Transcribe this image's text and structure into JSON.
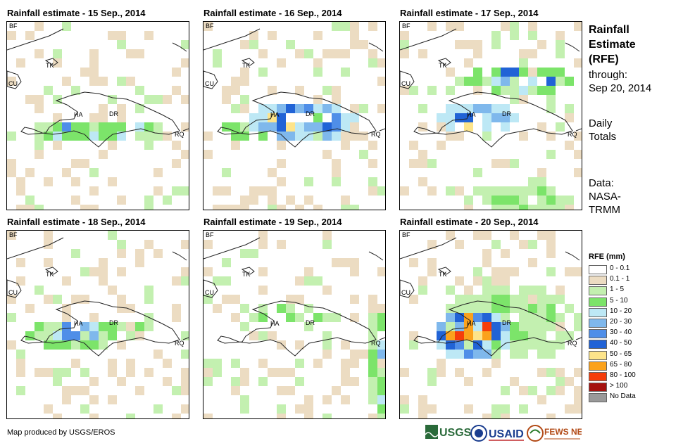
{
  "panels": [
    {
      "title": "Rainfall estimate - 15 Sep., 2014"
    },
    {
      "title": "Rainfall estimate - 16 Sep., 2014"
    },
    {
      "title": "Rainfall estimate - 17 Sep., 2014"
    },
    {
      "title": "Rainfall estimate - 18 Sep., 2014"
    },
    {
      "title": "Rainfall estimate - 19 Sep., 2014"
    },
    {
      "title": "Rainfall estimate - 20 Sep., 2014"
    }
  ],
  "places": {
    "bf": "BF",
    "cu": "CU",
    "tk": "TK",
    "ha": "HA",
    "dr": "DR",
    "rq": "RQ"
  },
  "side": {
    "title_line1": "Rainfall",
    "title_line2": "Estimate",
    "title_line3": "(RFE)",
    "through_line1": "through:",
    "through_line2": "Sep 20, 2014",
    "daily_line1": "Daily",
    "daily_line2": "Totals",
    "data_line1": "Data:",
    "data_line2": "NASA-",
    "data_line3": "TRMM"
  },
  "legend": {
    "title": "RFE (mm)",
    "items": [
      {
        "label": "0 - 0.1",
        "color": "#ffffff"
      },
      {
        "label": "0.1 - 1",
        "color": "#ecdcc2"
      },
      {
        "label": "1 - 5",
        "color": "#c3f0b0"
      },
      {
        "label": "5 - 10",
        "color": "#7ce46a"
      },
      {
        "label": "10 - 20",
        "color": "#bde8f5"
      },
      {
        "label": "20 - 30",
        "color": "#7fb8ec"
      },
      {
        "label": "30 - 40",
        "color": "#4f8ee8"
      },
      {
        "label": "40 - 50",
        "color": "#2163d6"
      },
      {
        "label": "50 - 65",
        "color": "#fde48a"
      },
      {
        "label": "65 - 80",
        "color": "#fba21c"
      },
      {
        "label": "80 - 100",
        "color": "#f53d0b"
      },
      {
        "label": "> 100",
        "color": "#a5120f"
      },
      {
        "label": "No Data",
        "color": "#999999"
      }
    ]
  },
  "credit": "Map produced by USGS/EROS",
  "logos": {
    "usgs": "USGS",
    "usaid": "USAID",
    "fews": "FEWS NET"
  }
}
